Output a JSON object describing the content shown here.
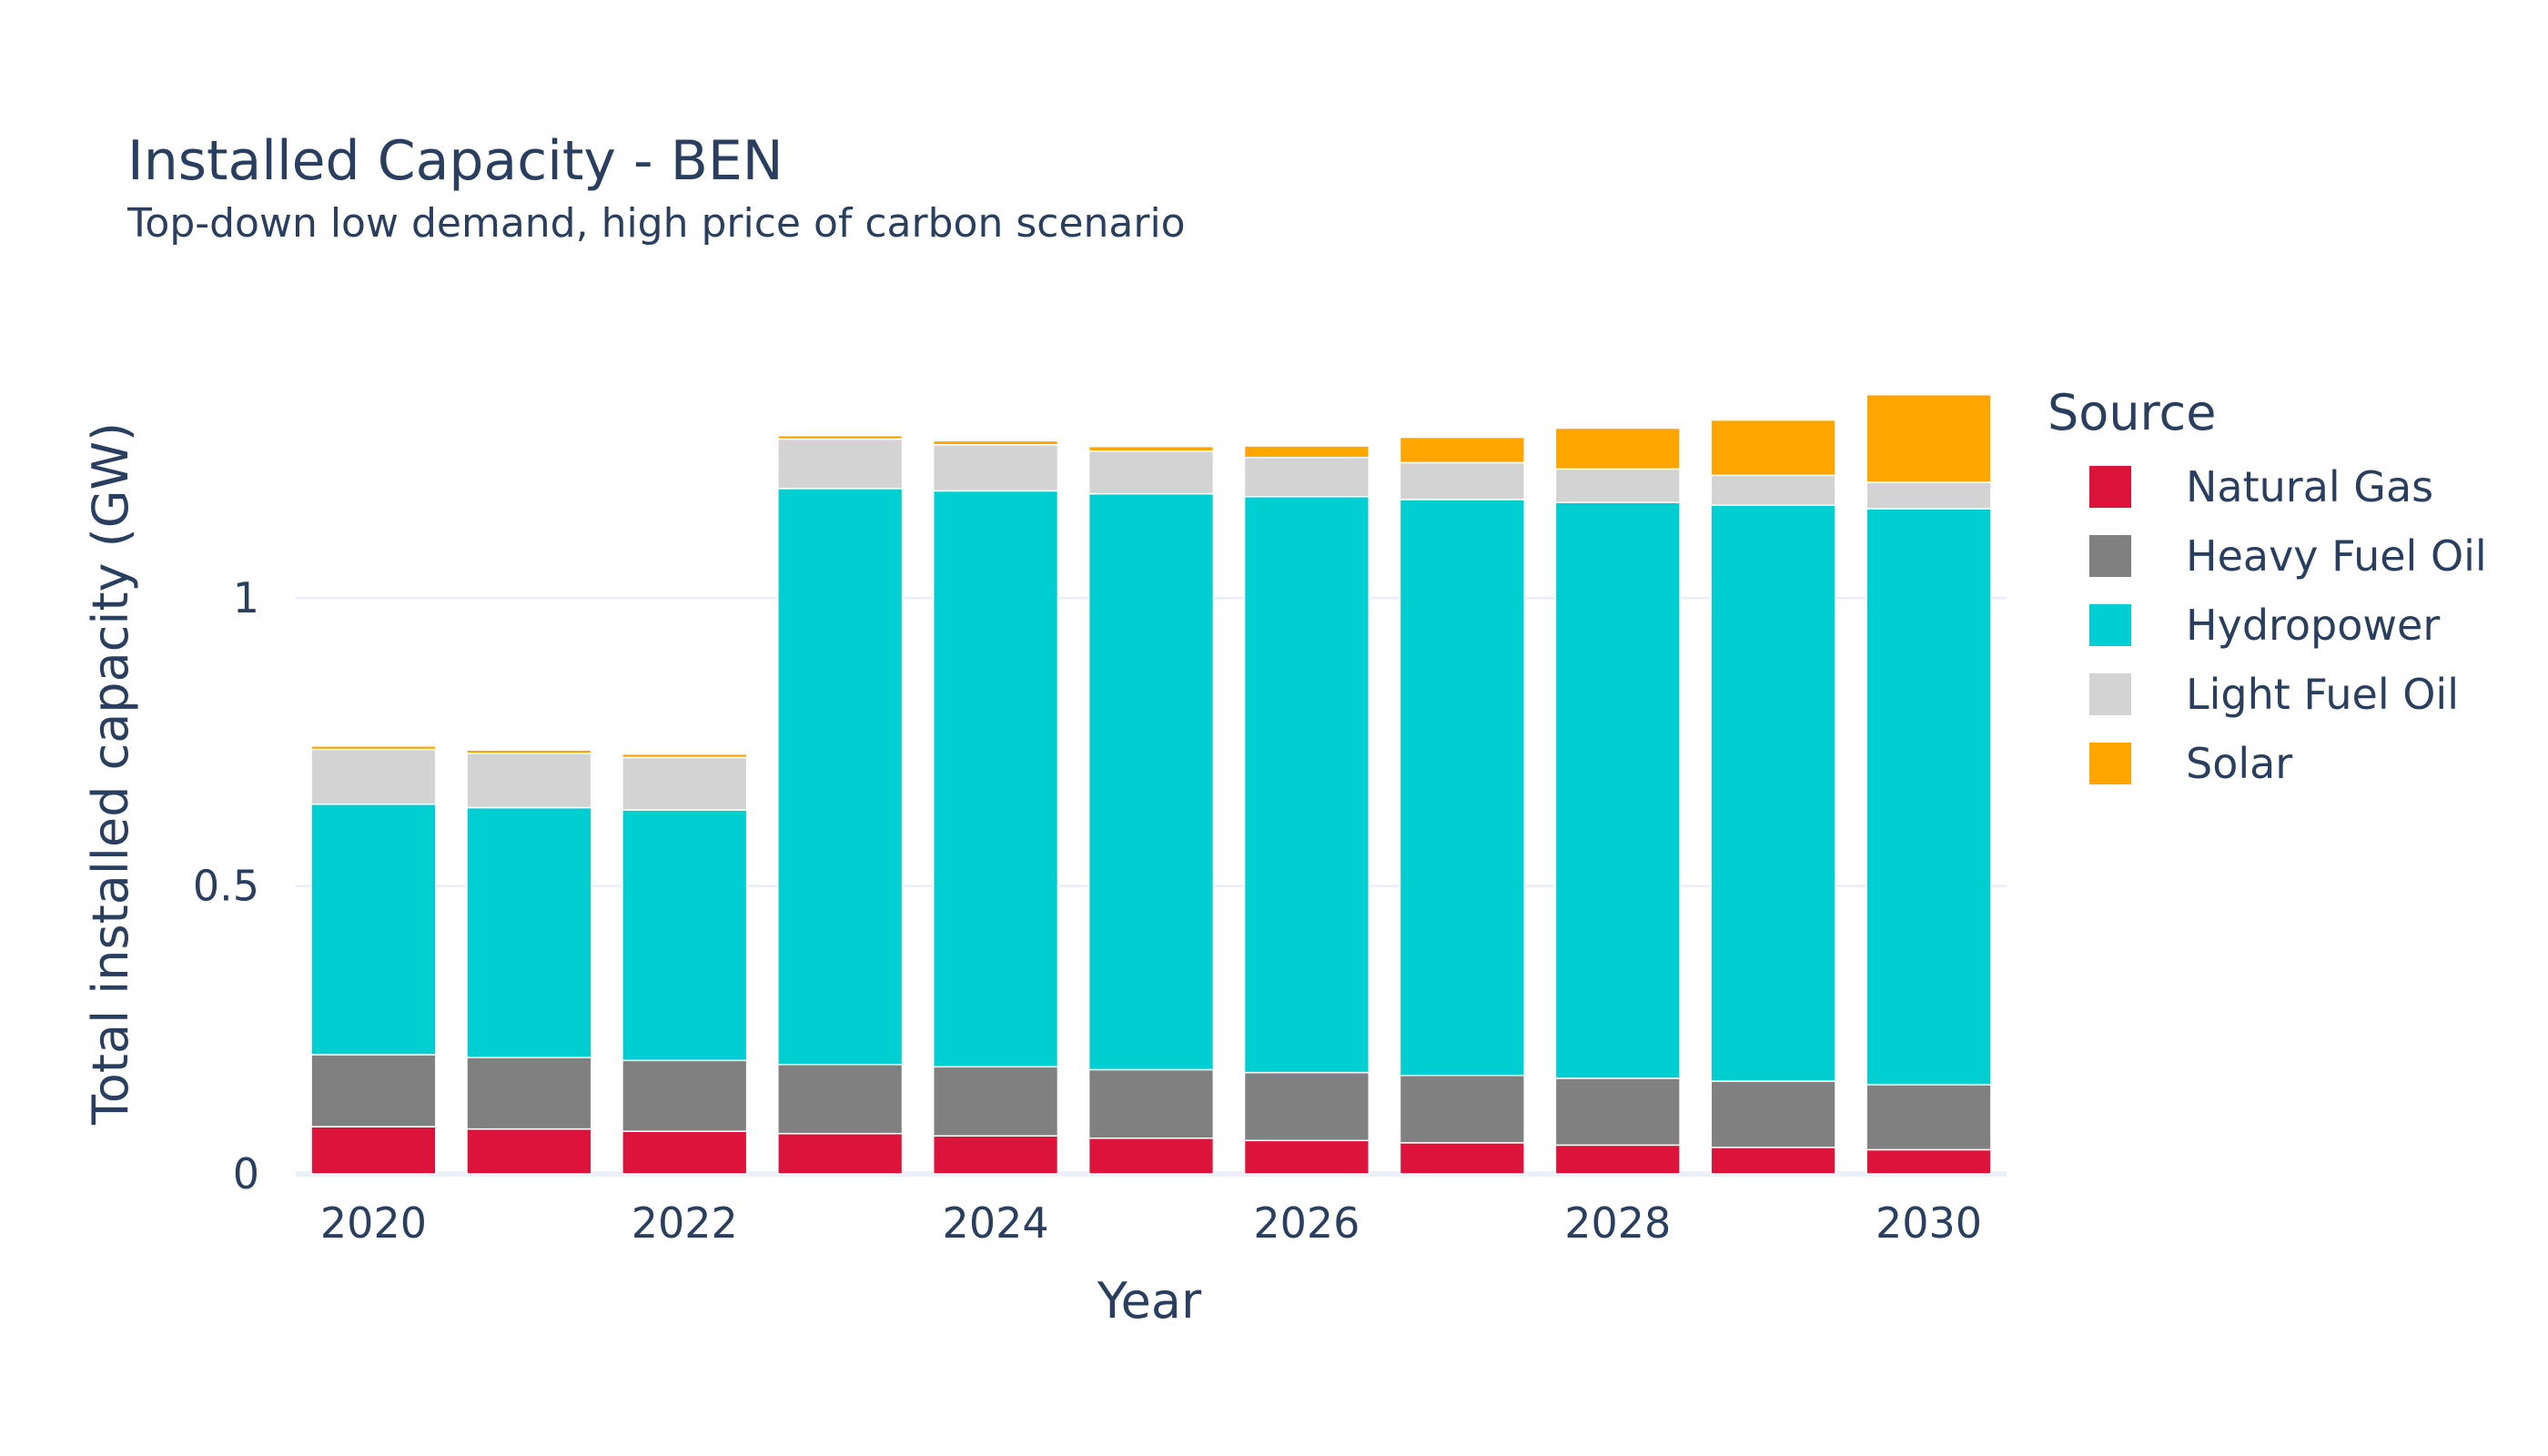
{
  "chart_data": {
    "type": "bar",
    "stacked": true,
    "title": "Installed Capacity - BEN",
    "subtitle": "Top-down low demand, high price of carbon scenario",
    "xlabel": "Year",
    "ylabel": "Total installed capacity (GW)",
    "categories": [
      2020,
      2021,
      2022,
      2023,
      2024,
      2025,
      2026,
      2027,
      2028,
      2029,
      2030
    ],
    "x_ticks": [
      "2020",
      "2022",
      "2024",
      "2026",
      "2028",
      "2030"
    ],
    "y_ticks": [
      {
        "value": 0,
        "label": "0"
      },
      {
        "value": 0.5,
        "label": "0.5"
      },
      {
        "value": 1,
        "label": "1"
      }
    ],
    "ylim": [
      0,
      1.43
    ],
    "grid": true,
    "legend": {
      "title": "Source",
      "position": "right"
    },
    "series": [
      {
        "name": "Natural Gas",
        "color": "#dc143c",
        "values": [
          0.082,
          0.078,
          0.074,
          0.07,
          0.066,
          0.062,
          0.058,
          0.054,
          0.05,
          0.046,
          0.042
        ]
      },
      {
        "name": "Heavy Fuel Oil",
        "color": "#808080",
        "values": [
          0.125,
          0.124,
          0.123,
          0.12,
          0.12,
          0.119,
          0.118,
          0.117,
          0.116,
          0.115,
          0.113
        ]
      },
      {
        "name": "Hydropower",
        "color": "#00ced1",
        "values": [
          0.435,
          0.434,
          0.435,
          1.0,
          1.0,
          1.0,
          1.0,
          1.0,
          1.0,
          1.0,
          1.0
        ]
      },
      {
        "name": "Light Fuel Oil",
        "color": "#d3d3d3",
        "values": [
          0.095,
          0.094,
          0.091,
          0.086,
          0.08,
          0.074,
          0.068,
          0.064,
          0.058,
          0.052,
          0.046
        ]
      },
      {
        "name": "Solar",
        "color": "#ffa500",
        "values": [
          0.006,
          0.006,
          0.006,
          0.006,
          0.007,
          0.008,
          0.02,
          0.044,
          0.071,
          0.096,
          0.152
        ]
      }
    ]
  }
}
